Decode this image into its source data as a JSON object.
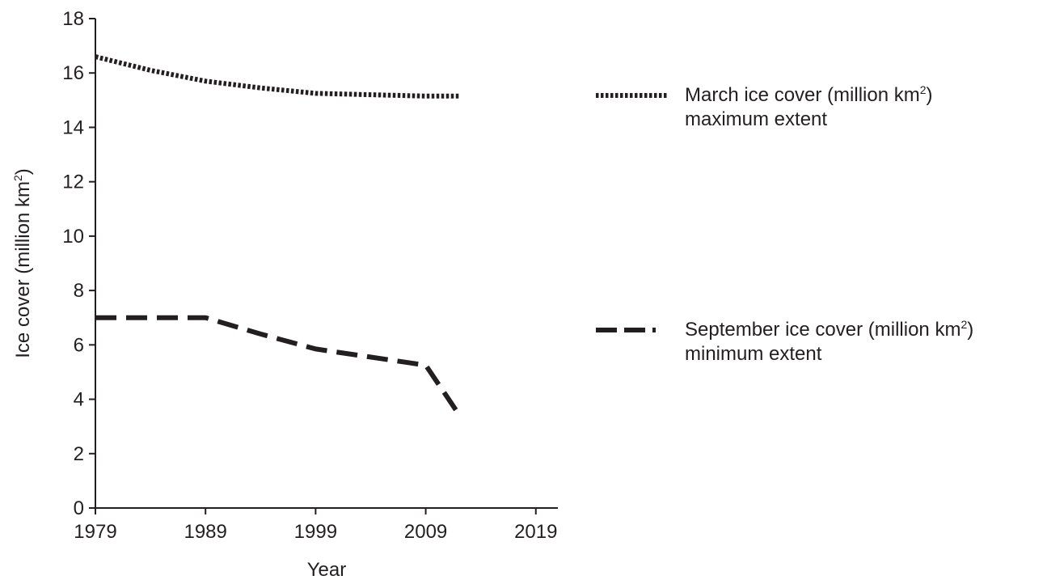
{
  "chart_data": {
    "type": "line",
    "xlabel": "Year",
    "ylabel": "Ice cover (million km",
    "ylabel_sup": "2",
    "ylabel_close": ")",
    "xlim": [
      1979,
      2021
    ],
    "ylim": [
      0,
      18
    ],
    "x_ticks": [
      1979,
      1989,
      1999,
      2009,
      2019
    ],
    "y_ticks": [
      0,
      2,
      4,
      6,
      8,
      10,
      12,
      14,
      16,
      18
    ],
    "grid": false,
    "legend_position": "right",
    "series": [
      {
        "name": "March ice cover (million km",
        "name_sup": "2",
        "name_close": ")",
        "name_line2": "maximum extent",
        "style": "dotted",
        "color": "#231f20",
        "points": [
          [
            1979,
            16.6
          ],
          [
            1984,
            16.1
          ],
          [
            1989,
            15.7
          ],
          [
            1994,
            15.45
          ],
          [
            1999,
            15.25
          ],
          [
            2004,
            15.2
          ],
          [
            2009,
            15.15
          ],
          [
            2012,
            15.15
          ]
        ]
      },
      {
        "name": "September ice cover (million km",
        "name_sup": "2",
        "name_close": ")",
        "name_line2": "minimum extent",
        "style": "dashed",
        "color": "#231f20",
        "points": [
          [
            1979,
            7.0
          ],
          [
            1989,
            7.0
          ],
          [
            1994,
            6.4
          ],
          [
            1999,
            5.85
          ],
          [
            2009,
            5.25
          ],
          [
            2012,
            3.45
          ]
        ]
      }
    ]
  }
}
